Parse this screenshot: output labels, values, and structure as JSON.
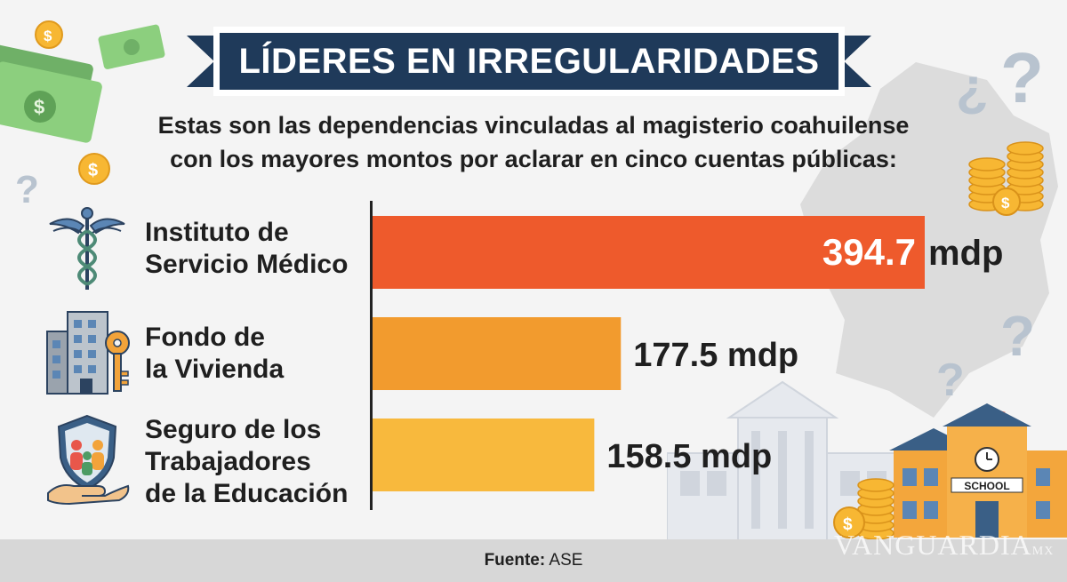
{
  "title": "LÍDERES EN IRREGULARIDADES",
  "subtitle_line1": "Estas son las dependencias vinculadas al magisterio coahuilense",
  "subtitle_line2": "con los mayores montos por aclarar en cinco cuentas públicas:",
  "chart_data": {
    "type": "bar",
    "orientation": "horizontal",
    "categories": [
      [
        "Instituto de",
        "Servicio Médico"
      ],
      [
        "Fondo de",
        "la Vivienda"
      ],
      [
        "Seguro de los",
        "Trabajadores",
        "de la Educación"
      ]
    ],
    "values": [
      394.7,
      177.5,
      158.5
    ],
    "value_labels": [
      "394.7",
      "177.5 mdp",
      "158.5 mdp"
    ],
    "unit": "mdp",
    "bar_colors": [
      "#ee5a2c",
      "#f29b2e",
      "#f8b93d"
    ]
  },
  "icons": [
    "caduceus-icon",
    "building-key-icon",
    "family-shield-hand-icon"
  ],
  "source_label": "Fuente:",
  "source_value": "ASE",
  "watermark": "VANGUARDIA",
  "watermark_suffix": "MX",
  "school_sign": "SCHOOL",
  "colors": {
    "banner": "#1f3a5a",
    "text": "#1f1f1f",
    "footer": "#d7d7d7",
    "background": "#f4f4f4"
  }
}
